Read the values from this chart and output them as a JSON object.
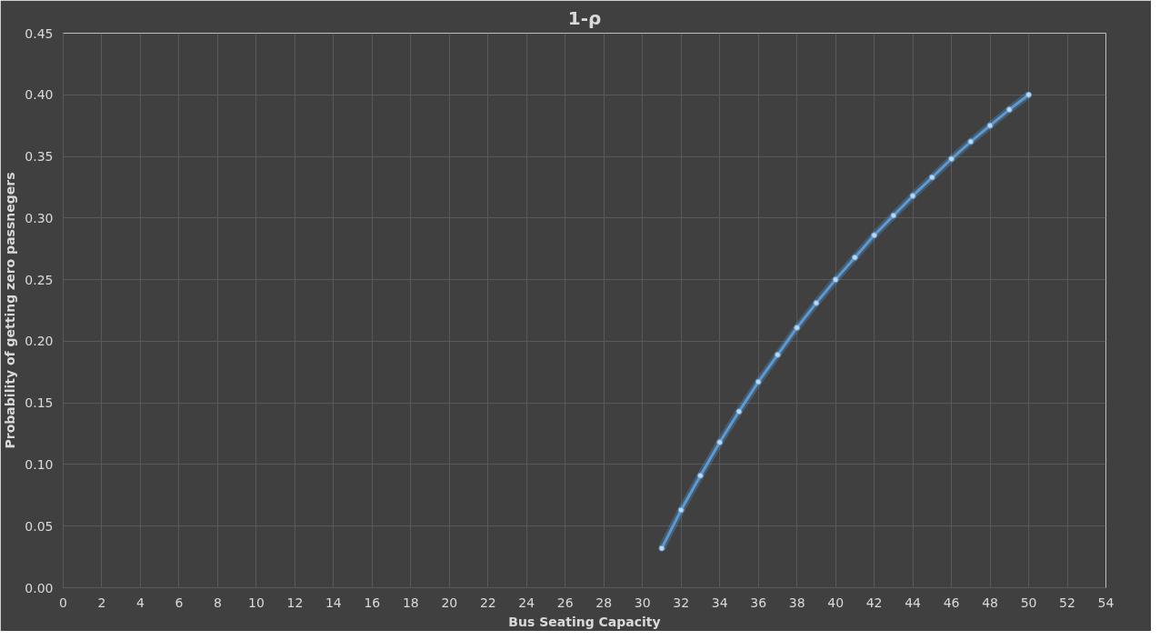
{
  "chart_data": {
    "type": "line",
    "title": "1-ρ",
    "xlabel": "Bus Seating Capacity",
    "ylabel": "Probability of getting zero passnegers",
    "x": [
      31,
      32,
      33,
      34,
      35,
      36,
      37,
      38,
      39,
      40,
      41,
      42,
      43,
      44,
      45,
      46,
      47,
      48,
      49,
      50
    ],
    "series": [
      {
        "color": "#5b9bd5",
        "values": [
          0.032,
          0.063,
          0.091,
          0.118,
          0.143,
          0.167,
          0.189,
          0.211,
          0.231,
          0.25,
          0.268,
          0.286,
          0.302,
          0.318,
          0.333,
          0.348,
          0.362,
          0.375,
          0.388,
          0.4
        ]
      }
    ],
    "xlim": [
      0,
      54
    ],
    "xticks": [
      0,
      2,
      4,
      6,
      8,
      10,
      12,
      14,
      16,
      18,
      20,
      22,
      24,
      26,
      28,
      30,
      32,
      34,
      36,
      38,
      40,
      42,
      44,
      46,
      48,
      50,
      52,
      54
    ],
    "ylim": [
      0,
      0.45
    ],
    "yticks": [
      {
        "value": 0,
        "label": "0.00"
      },
      {
        "value": 0.05,
        "label": "0.05"
      },
      {
        "value": 0.1,
        "label": "0.10"
      },
      {
        "value": 0.15,
        "label": "0.15"
      },
      {
        "value": 0.2,
        "label": "0.20"
      },
      {
        "value": 0.25,
        "label": "0.25"
      },
      {
        "value": 0.3,
        "label": "0.30"
      },
      {
        "value": 0.35,
        "label": "0.35"
      },
      {
        "value": 0.4,
        "label": "0.40"
      },
      {
        "value": 0.45,
        "label": "0.45"
      }
    ],
    "grid": true,
    "marker": "circle",
    "line_style": "solid"
  }
}
